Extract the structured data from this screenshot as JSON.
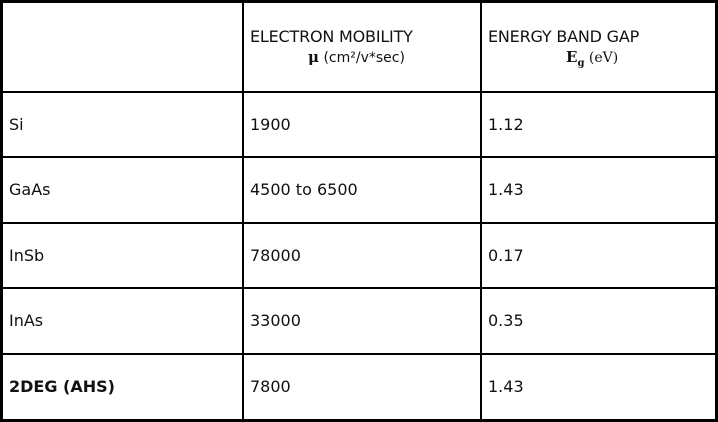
{
  "table": {
    "header": {
      "empty": "",
      "mobility_title": "ELECTRON MOBILITY",
      "mobility_symbol": "μ",
      "mobility_unit": "(cm²/v*sec)",
      "gap_title": "ENERGY BAND  GAP",
      "gap_symbol": "E",
      "gap_symbol_sub": "g",
      "gap_unit": "(eV)"
    },
    "rows": [
      {
        "material": "Si",
        "mobility": "1900",
        "gap": "1.12"
      },
      {
        "material": "GaAs",
        "mobility": "4500 to 6500",
        "gap": "1.43"
      },
      {
        "material": "InSb",
        "mobility": "78000",
        "gap": "0.17"
      },
      {
        "material": "InAs",
        "mobility": "33000",
        "gap": "0.35"
      },
      {
        "material": "2DEG (AHS)",
        "mobility": "7800",
        "gap": "1.43"
      }
    ]
  }
}
